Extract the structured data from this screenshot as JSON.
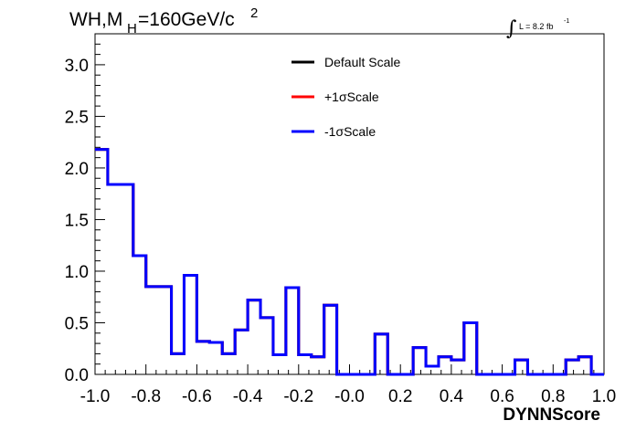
{
  "chart_data": {
    "type": "line",
    "title_main": "WH,M",
    "title_sub": "H",
    "title_rest": "=160GeV/c",
    "title_sup": "2",
    "lumi_label": "L = 8.2 fb",
    "lumi_sup": "-1",
    "lumi_symbol": "∫",
    "xlabel": "DYNNScore",
    "xlim": [
      -1.0,
      1.0
    ],
    "ylim": [
      0.0,
      3.3
    ],
    "xticks": [
      "-1.0",
      "-0.8",
      "-0.6",
      "-0.4",
      "-0.2",
      "-0.0",
      "0.2",
      "0.4",
      "0.6",
      "0.8",
      "1.0"
    ],
    "yticks": [
      "0.0",
      "0.5",
      "1.0",
      "1.5",
      "2.0",
      "2.5",
      "3.0"
    ],
    "bin_edges": [
      -1.0,
      -0.95,
      -0.9,
      -0.85,
      -0.8,
      -0.75,
      -0.7,
      -0.65,
      -0.6,
      -0.55,
      -0.5,
      -0.45,
      -0.4,
      -0.35,
      -0.3,
      -0.25,
      -0.2,
      -0.15,
      -0.1,
      -0.05,
      0.0,
      0.05,
      0.1,
      0.15,
      0.2,
      0.25,
      0.3,
      0.35,
      0.4,
      0.45,
      0.5,
      0.55,
      0.6,
      0.65,
      0.7,
      0.75,
      0.8,
      0.85,
      0.9,
      0.95,
      1.0
    ],
    "series": [
      {
        "name": "Default Scale",
        "color": "#000000",
        "values": [
          2.18,
          1.84,
          1.84,
          1.15,
          0.85,
          0.85,
          0.2,
          0.96,
          0.32,
          0.31,
          0.2,
          0.43,
          0.72,
          0.55,
          0.19,
          0.84,
          0.19,
          0.17,
          0.67,
          0.0,
          0.0,
          0.0,
          0.39,
          0.0,
          0.0,
          0.26,
          0.08,
          0.17,
          0.14,
          0.5,
          0.0,
          0.0,
          0.0,
          0.14,
          0.0,
          0.0,
          0.0,
          0.14,
          0.17,
          0.0
        ]
      },
      {
        "name": "+1σScale",
        "color": "#ff0000",
        "values": [
          2.18,
          1.84,
          1.84,
          1.15,
          0.85,
          0.85,
          0.2,
          0.96,
          0.32,
          0.31,
          0.2,
          0.43,
          0.72,
          0.55,
          0.19,
          0.84,
          0.19,
          0.17,
          0.67,
          0.0,
          0.0,
          0.0,
          0.39,
          0.0,
          0.0,
          0.26,
          0.08,
          0.17,
          0.14,
          0.5,
          0.0,
          0.0,
          0.0,
          0.14,
          0.0,
          0.0,
          0.0,
          0.14,
          0.17,
          0.0
        ]
      },
      {
        "name": "-1σScale",
        "color": "#0000ff",
        "values": [
          2.18,
          1.84,
          1.84,
          1.15,
          0.85,
          0.85,
          0.2,
          0.96,
          0.32,
          0.31,
          0.2,
          0.43,
          0.72,
          0.55,
          0.19,
          0.84,
          0.19,
          0.17,
          0.67,
          0.0,
          0.0,
          0.0,
          0.39,
          0.0,
          0.0,
          0.26,
          0.08,
          0.17,
          0.14,
          0.5,
          0.0,
          0.0,
          0.0,
          0.14,
          0.0,
          0.0,
          0.0,
          0.14,
          0.17,
          0.0
        ]
      }
    ],
    "legend": "top-center",
    "grid": false
  }
}
